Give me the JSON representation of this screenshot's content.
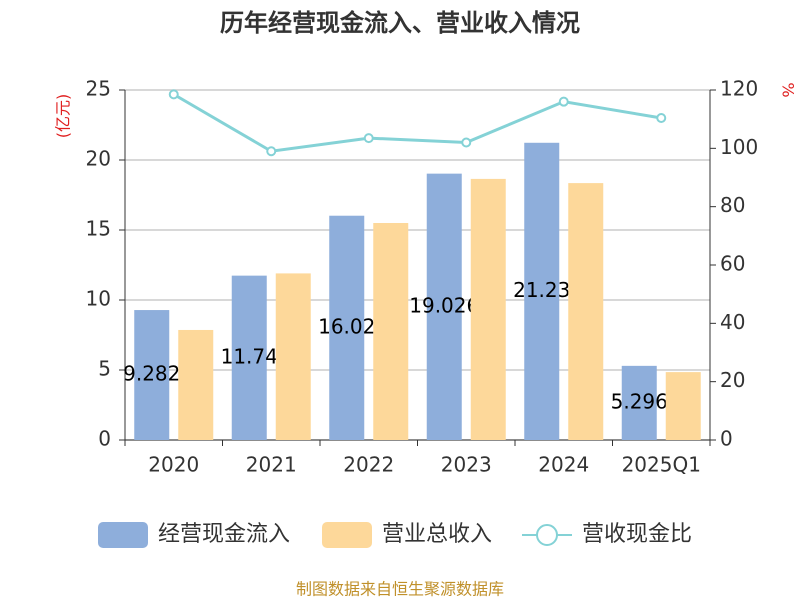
{
  "chart_data": {
    "type": "bar",
    "title": "历年经营现金流入、营业收入情况",
    "ylabel": "(亿元)",
    "y2label": "%",
    "categories": [
      "2020",
      "2021",
      "2022",
      "2023",
      "2024",
      "2025Q1"
    ],
    "series": [
      {
        "name": "经营现金流入",
        "type": "bar",
        "color": "#8eaedb",
        "values": [
          9.282,
          11.74,
          16.02,
          19.026,
          21.23,
          5.296
        ],
        "data_labels": true
      },
      {
        "name": "营业总收入",
        "type": "bar",
        "color": "#fdd89a",
        "values": [
          7.86,
          11.9,
          15.5,
          18.65,
          18.35,
          4.85
        ]
      },
      {
        "name": "营收现金比",
        "type": "line",
        "axis": "y2",
        "color": "#84d2d6",
        "values": [
          118.5,
          99,
          103.5,
          102,
          116,
          110.4
        ]
      }
    ],
    "ylim": [
      0,
      25
    ],
    "yticks": [
      0,
      5,
      10,
      15,
      20,
      25
    ],
    "y2lim": [
      0,
      120
    ],
    "y2ticks": [
      0,
      20,
      40,
      60,
      80,
      100,
      120
    ],
    "grid": true,
    "legend": "bottom",
    "source": "制图数据来自恒生聚源数据库"
  }
}
